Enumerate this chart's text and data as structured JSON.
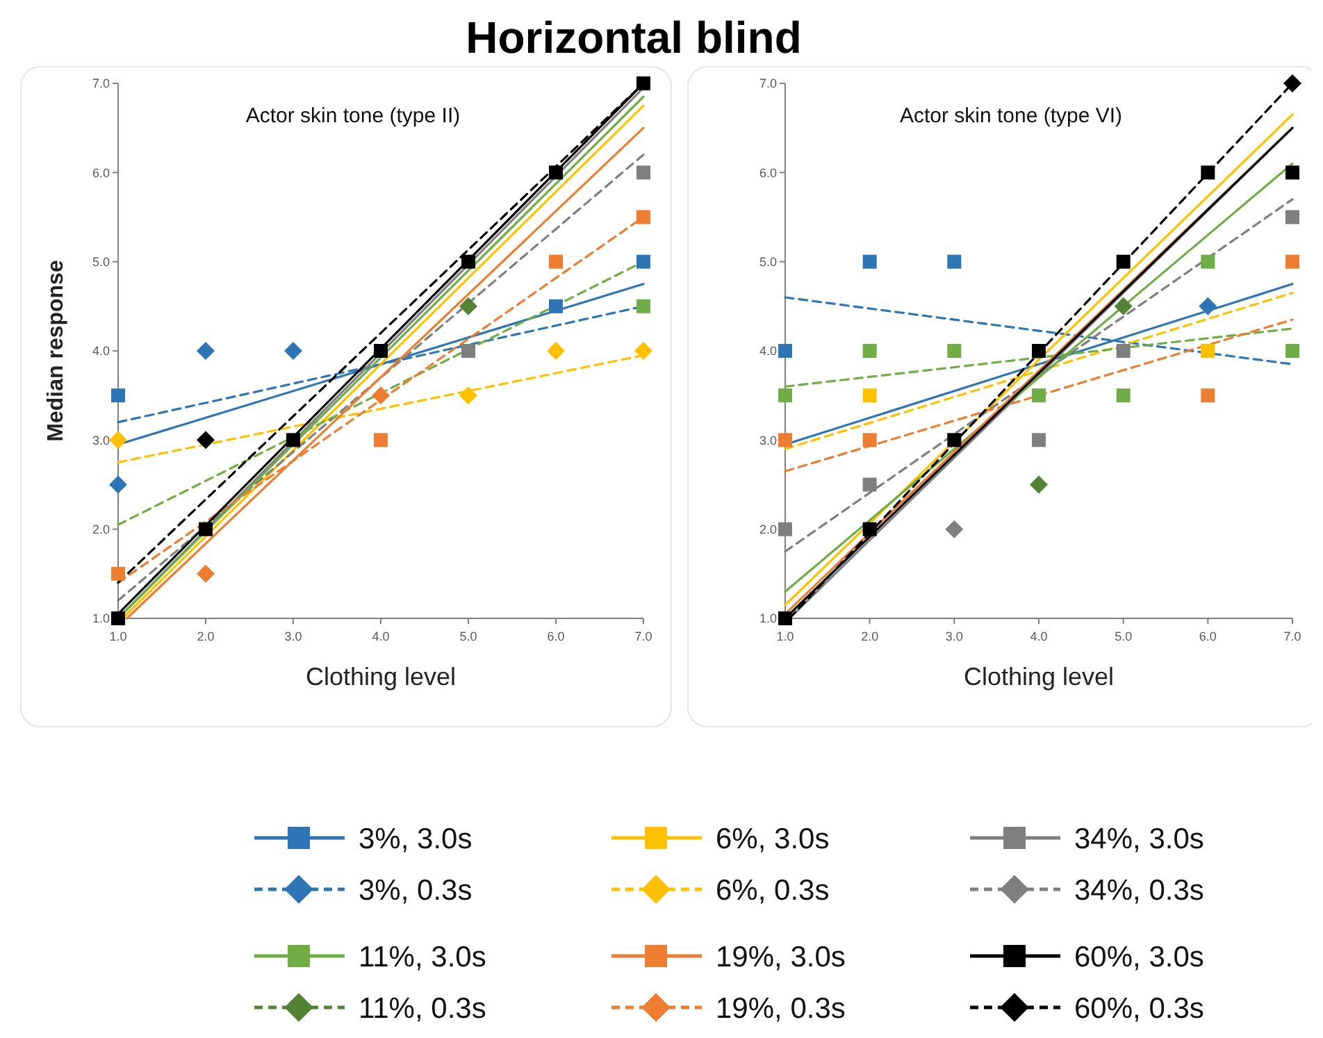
{
  "chart_data": [
    {
      "type": "scatter",
      "title": "Horizontal blind",
      "subtitle": "Actor skin tone (type II)",
      "xlabel": "Clothing level",
      "ylabel": "Median response",
      "x": [
        1,
        2,
        3,
        4,
        5,
        6,
        7
      ],
      "xlim": [
        1,
        7
      ],
      "ylim": [
        1,
        7
      ],
      "xticks": [
        {
          "value": 1,
          "label": "1.0"
        },
        {
          "value": 2,
          "label": "2.0"
        },
        {
          "value": 3,
          "label": "3.0"
        },
        {
          "value": 4,
          "label": "4.0"
        },
        {
          "value": 5,
          "label": "5.0"
        },
        {
          "value": 6,
          "label": "6.0"
        },
        {
          "value": 7,
          "label": "7.0"
        }
      ],
      "yticks": [
        {
          "value": 1,
          "label": "1.0"
        },
        {
          "value": 2,
          "label": "2.0"
        },
        {
          "value": 3,
          "label": "3.0"
        },
        {
          "value": 4,
          "label": "4.0"
        },
        {
          "value": 5,
          "label": "5.0"
        },
        {
          "value": 6,
          "label": "6.0"
        },
        {
          "value": 7,
          "label": "7.0"
        }
      ],
      "grid": false,
      "legend": "bottom",
      "series": [
        {
          "name": "3%, 3.0s",
          "type": "scatter",
          "marker": "square",
          "color": "#2e75b6",
          "values": [
            3.5,
            null,
            null,
            null,
            null,
            4.5,
            5.0
          ]
        },
        {
          "type": "line",
          "x": [
            1,
            7
          ],
          "color": "#2e75b6",
          "line_style": "solid",
          "values": [
            2.95,
            4.75
          ]
        },
        {
          "name": "3%, 0.3s",
          "type": "scatter",
          "marker": "diamond",
          "color": "#2e75b6",
          "values": [
            2.5,
            4.0,
            4.0,
            null,
            null,
            null,
            null
          ]
        },
        {
          "type": "line",
          "x": [
            1,
            7
          ],
          "color": "#2e75b6",
          "line_style": "dashed",
          "values": [
            3.2,
            4.5
          ]
        },
        {
          "name": "6%, 3.0s",
          "type": "scatter",
          "marker": "square",
          "color": "#ffc000",
          "values": [
            null,
            null,
            null,
            null,
            null,
            null,
            null
          ]
        },
        {
          "type": "line",
          "x": [
            1.05,
            7
          ],
          "color": "#ffc000",
          "line_style": "solid",
          "values": [
            1.0,
            6.75
          ]
        },
        {
          "name": "6%, 0.3s",
          "type": "scatter",
          "marker": "diamond",
          "color": "#ffc000",
          "values": [
            3.0,
            null,
            null,
            null,
            3.5,
            4.0,
            4.0
          ]
        },
        {
          "type": "line",
          "x": [
            1,
            7
          ],
          "color": "#ffc000",
          "line_style": "dashed",
          "values": [
            2.75,
            3.95
          ]
        },
        {
          "name": "34%, 3.0s",
          "type": "scatter",
          "marker": "square",
          "color": "#7f7f7f",
          "values": [
            null,
            null,
            null,
            null,
            4.0,
            null,
            6.0
          ]
        },
        {
          "type": "line",
          "x": [
            1,
            7
          ],
          "color": "#7f7f7f",
          "line_style": "solid",
          "values": [
            1.0,
            6.95
          ]
        },
        {
          "name": "34%, 0.3s",
          "type": "scatter",
          "marker": "diamond",
          "color": "#7f7f7f",
          "values": [
            null,
            null,
            null,
            null,
            null,
            null,
            null
          ]
        },
        {
          "type": "line",
          "x": [
            1,
            7
          ],
          "color": "#7f7f7f",
          "line_style": "dashed",
          "values": [
            1.2,
            6.2
          ]
        },
        {
          "name": "11%, 3.0s",
          "type": "scatter",
          "marker": "square",
          "color": "#70ad47",
          "values": [
            null,
            null,
            null,
            null,
            null,
            null,
            4.5
          ]
        },
        {
          "type": "line",
          "x": [
            1,
            7
          ],
          "color": "#70ad47",
          "line_style": "solid",
          "values": [
            1.0,
            6.85
          ]
        },
        {
          "name": "11%, 0.3s",
          "type": "scatter",
          "marker": "diamond",
          "color": "#548235",
          "values": [
            null,
            null,
            null,
            null,
            4.5,
            null,
            null
          ]
        },
        {
          "type": "line",
          "x": [
            1,
            7
          ],
          "color": "#70ad47",
          "line_style": "dashed",
          "values": [
            2.05,
            5.0
          ]
        },
        {
          "name": "19%, 3.0s",
          "type": "scatter",
          "marker": "square",
          "color": "#ed7d31",
          "values": [
            1.5,
            null,
            null,
            3.0,
            null,
            5.0,
            5.5
          ]
        },
        {
          "type": "line",
          "x": [
            1.1,
            7
          ],
          "color": "#ed7d31",
          "line_style": "solid",
          "values": [
            1.0,
            6.5
          ]
        },
        {
          "name": "19%, 0.3s",
          "type": "scatter",
          "marker": "diamond",
          "color": "#ed7d31",
          "values": [
            null,
            1.5,
            null,
            3.5,
            null,
            null,
            null
          ]
        },
        {
          "type": "line",
          "x": [
            1,
            7
          ],
          "color": "#ed7d31",
          "line_style": "dashed",
          "values": [
            1.4,
            5.5
          ]
        },
        {
          "name": "60%, 3.0s",
          "type": "scatter",
          "marker": "square",
          "color": "#000000",
          "values": [
            1.0,
            2.0,
            3.0,
            4.0,
            5.0,
            6.0,
            7.0
          ]
        },
        {
          "type": "line",
          "x": [
            1,
            7
          ],
          "color": "#000000",
          "line_style": "solid",
          "values": [
            1.05,
            7.0
          ]
        },
        {
          "name": "60%, 0.3s",
          "type": "scatter",
          "marker": "diamond",
          "color": "#000000",
          "values": [
            null,
            3.0,
            null,
            null,
            null,
            null,
            null
          ]
        },
        {
          "type": "line",
          "x": [
            1,
            7
          ],
          "color": "#000000",
          "line_style": "dashed",
          "values": [
            1.4,
            7.0
          ]
        }
      ]
    },
    {
      "type": "scatter",
      "subtitle": "Actor skin tone (type VI)",
      "xlabel": "Clothing level",
      "x": [
        1,
        2,
        3,
        4,
        5,
        6,
        7
      ],
      "xlim": [
        1,
        7
      ],
      "ylim": [
        1,
        7
      ],
      "xticks": [
        {
          "value": 1,
          "label": "1.0"
        },
        {
          "value": 2,
          "label": "2.0"
        },
        {
          "value": 3,
          "label": "3.0"
        },
        {
          "value": 4,
          "label": "4.0"
        },
        {
          "value": 5,
          "label": "5.0"
        },
        {
          "value": 6,
          "label": "6.0"
        },
        {
          "value": 7,
          "label": "7.0"
        }
      ],
      "yticks": [
        {
          "value": 1,
          "label": "1.0"
        },
        {
          "value": 2,
          "label": "2.0"
        },
        {
          "value": 3,
          "label": "3.0"
        },
        {
          "value": 4,
          "label": "4.0"
        },
        {
          "value": 5,
          "label": "5.0"
        },
        {
          "value": 6,
          "label": "6.0"
        },
        {
          "value": 7,
          "label": "7.0"
        }
      ],
      "grid": false,
      "series": [
        {
          "type": "scatter",
          "marker": "square",
          "color": "#2e75b6",
          "values": [
            4.0,
            5.0,
            5.0,
            null,
            null,
            null,
            null
          ]
        },
        {
          "type": "line",
          "x": [
            1,
            7
          ],
          "color": "#2e75b6",
          "line_style": "solid",
          "values": [
            2.95,
            4.75
          ]
        },
        {
          "type": "scatter",
          "marker": "diamond",
          "color": "#2e75b6",
          "values": [
            null,
            null,
            null,
            null,
            null,
            4.5,
            null
          ]
        },
        {
          "type": "line",
          "x": [
            1,
            7
          ],
          "color": "#2e75b6",
          "line_style": "dashed",
          "values": [
            4.6,
            3.85
          ]
        },
        {
          "type": "scatter",
          "marker": "square",
          "color": "#ffc000",
          "values": [
            null,
            3.5,
            null,
            null,
            null,
            4.0,
            null
          ]
        },
        {
          "type": "line",
          "x": [
            1,
            7
          ],
          "color": "#ffc000",
          "line_style": "solid",
          "values": [
            1.15,
            6.65
          ]
        },
        {
          "type": "line",
          "x": [
            1,
            7
          ],
          "color": "#ffc000",
          "line_style": "dashed",
          "values": [
            2.9,
            4.65
          ]
        },
        {
          "type": "scatter",
          "marker": "square",
          "color": "#7f7f7f",
          "values": [
            2.0,
            2.5,
            null,
            3.0,
            4.0,
            null,
            5.5
          ]
        },
        {
          "type": "line",
          "x": [
            1.05,
            7
          ],
          "color": "#7f7f7f",
          "line_style": "solid",
          "values": [
            1.0,
            6.5
          ]
        },
        {
          "type": "scatter",
          "marker": "diamond",
          "color": "#7f7f7f",
          "values": [
            null,
            null,
            2.0,
            null,
            null,
            null,
            null
          ]
        },
        {
          "type": "line",
          "x": [
            1,
            7
          ],
          "color": "#7f7f7f",
          "line_style": "dashed",
          "values": [
            1.75,
            5.7
          ]
        },
        {
          "type": "scatter",
          "marker": "square",
          "color": "#70ad47",
          "values": [
            3.5,
            4.0,
            4.0,
            3.5,
            3.5,
            5.0,
            4.0
          ]
        },
        {
          "type": "line",
          "x": [
            1,
            7
          ],
          "color": "#70ad47",
          "line_style": "solid",
          "values": [
            1.3,
            6.1
          ]
        },
        {
          "type": "scatter",
          "marker": "diamond",
          "color": "#548235",
          "values": [
            null,
            null,
            null,
            2.5,
            4.5,
            null,
            null
          ]
        },
        {
          "type": "line",
          "x": [
            1,
            7
          ],
          "color": "#70ad47",
          "line_style": "dashed",
          "values": [
            3.6,
            4.25
          ]
        },
        {
          "type": "scatter",
          "marker": "square",
          "color": "#ed7d31",
          "values": [
            3.0,
            3.0,
            null,
            null,
            null,
            3.5,
            5.0
          ]
        },
        {
          "type": "line",
          "x": [
            1,
            7
          ],
          "color": "#ed7d31",
          "line_style": "solid",
          "values": [
            1.05,
            6.5
          ]
        },
        {
          "type": "line",
          "x": [
            1,
            7
          ],
          "color": "#ed7d31",
          "line_style": "dashed",
          "values": [
            2.65,
            4.35
          ]
        },
        {
          "type": "scatter",
          "marker": "square",
          "color": "#000000",
          "values": [
            1.0,
            2.0,
            3.0,
            4.0,
            5.0,
            6.0,
            6.0
          ]
        },
        {
          "type": "line",
          "x": [
            1,
            7
          ],
          "color": "#000000",
          "line_style": "solid",
          "values": [
            1.0,
            6.5
          ]
        },
        {
          "type": "scatter",
          "marker": "diamond",
          "color": "#000000",
          "values": [
            null,
            null,
            null,
            null,
            null,
            null,
            7.0
          ]
        },
        {
          "type": "line",
          "x": [
            1.05,
            7
          ],
          "color": "#000000",
          "line_style": "dashed",
          "values": [
            1.0,
            7.0
          ]
        }
      ]
    }
  ]
}
